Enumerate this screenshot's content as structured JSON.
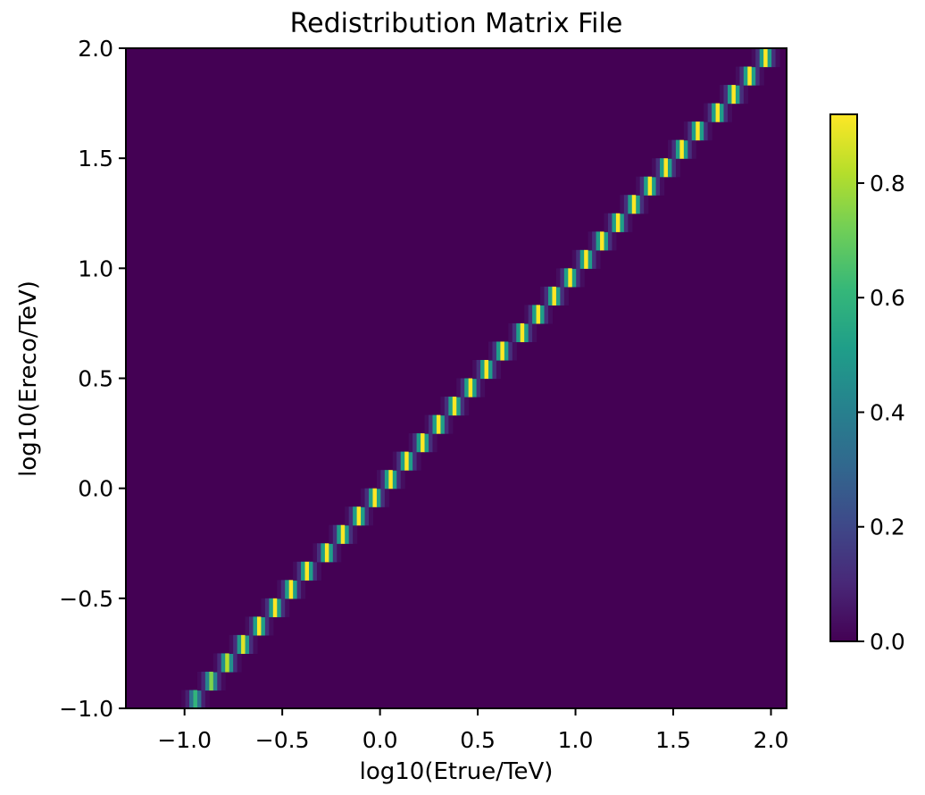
{
  "chart_data": {
    "type": "heatmap",
    "title": "Redistribution Matrix File",
    "xlabel": "log10(Etrue/TeV)",
    "ylabel": "log10(Ereco/TeV)",
    "xlim": [
      -1.3,
      2.08
    ],
    "ylim": [
      -1.0,
      2.0
    ],
    "xticks": [
      -1.0,
      -0.5,
      0.0,
      0.5,
      1.0,
      1.5,
      2.0
    ],
    "xtick_labels": [
      "−1.0",
      "−0.5",
      "0.0",
      "0.5",
      "1.0",
      "1.5",
      "2.0"
    ],
    "yticks": [
      -1.0,
      -0.5,
      0.0,
      0.5,
      1.0,
      1.5,
      2.0
    ],
    "ytick_labels": [
      "−1.0",
      "−0.5",
      "0.0",
      "0.5",
      "1.0",
      "1.5",
      "2.0"
    ],
    "colormap": "viridis",
    "colorbar": {
      "range": [
        0.0,
        0.92
      ],
      "ticks": [
        0.0,
        0.2,
        0.4,
        0.6,
        0.8
      ],
      "tick_labels": [
        "0.0",
        "0.2",
        "0.4",
        "0.6",
        "0.8"
      ]
    },
    "matrix": {
      "ereco_bin_edges_start": -1.0,
      "ereco_bin_edges_stop": 2.0,
      "ereco_bins_per_decade": 12,
      "etrue_bin_width": 0.0204,
      "etrue_start": -1.2,
      "etrue_stop": 2.0,
      "diagonal_peak_values": [
        0.6,
        0.74,
        0.82,
        0.88,
        0.92
      ],
      "background_value": 0.0,
      "row_profile_offsets": [
        -3,
        -2,
        -1,
        0,
        1,
        2,
        3
      ],
      "row_profile_values": [
        0.03,
        0.12,
        0.5,
        0.9,
        0.5,
        0.12,
        0.03
      ]
    }
  },
  "colors": {
    "background": "#440154",
    "axis": "#000000"
  }
}
